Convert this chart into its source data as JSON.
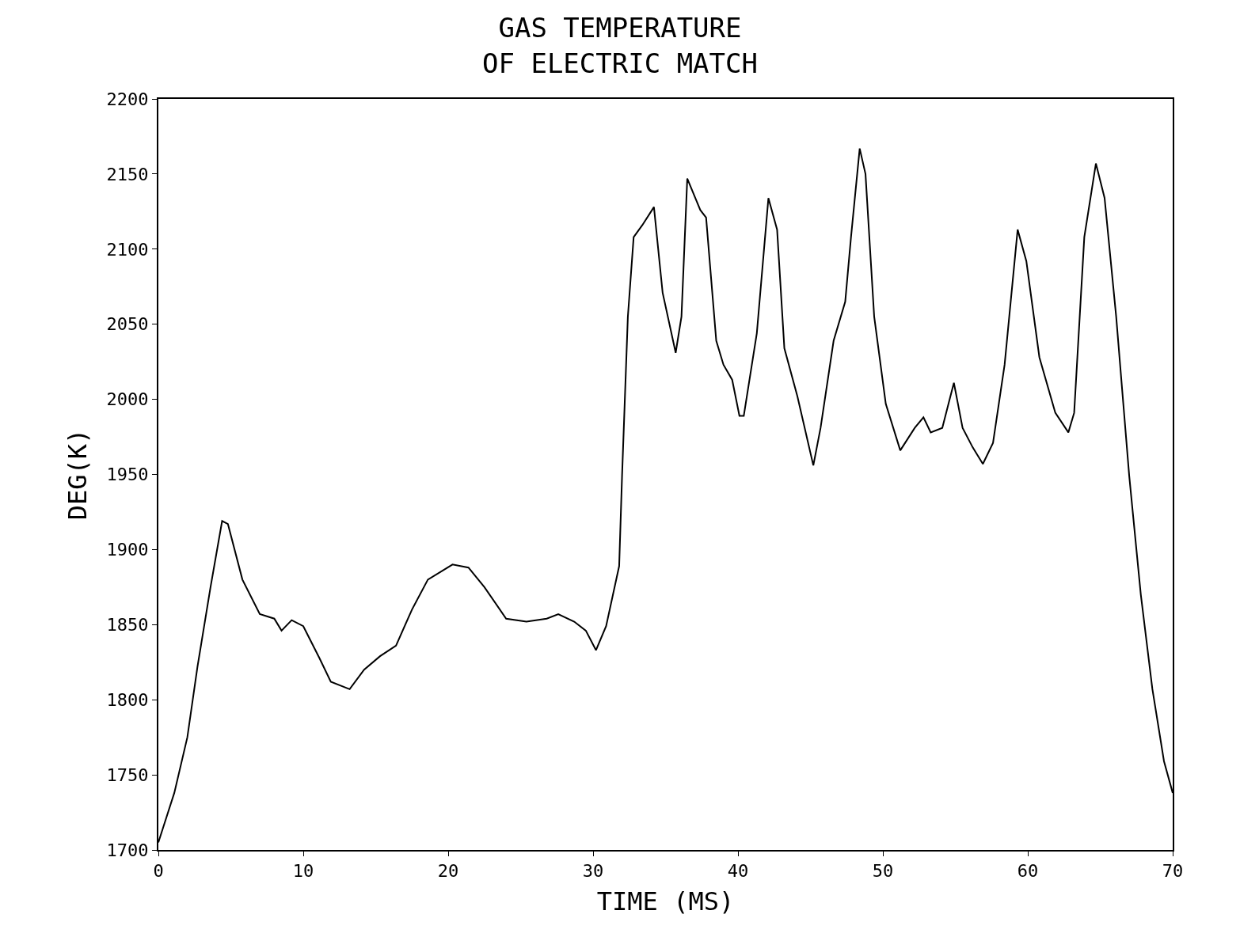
{
  "chart_data": {
    "type": "line",
    "title": "GAS TEMPERATURE\nOF ELECTRIC MATCH",
    "xlabel": "TIME (MS)",
    "ylabel": "DEG(K)",
    "x": [
      0,
      1.1,
      2.0,
      2.7,
      3.6,
      4.4,
      4.8,
      5.8,
      7.0,
      8.0,
      8.5,
      9.2,
      10.0,
      11.1,
      11.9,
      13.2,
      14.2,
      15.3,
      16.4,
      17.5,
      18.6,
      20.3,
      21.4,
      22.5,
      24.0,
      25.4,
      26.8,
      27.6,
      28.7,
      29.5,
      30.2,
      30.9,
      31.8,
      32.0,
      32.4,
      32.8,
      33.4,
      34.2,
      34.8,
      35.7,
      36.1,
      36.5,
      37.4,
      37.8,
      38.5,
      39.0,
      39.6,
      40.1,
      40.4,
      41.3,
      42.1,
      42.7,
      43.2,
      44.1,
      45.2,
      45.7,
      46.6,
      47.4,
      47.8,
      48.4,
      48.8,
      49.4,
      50.2,
      51.2,
      52.2,
      52.8,
      53.3,
      54.1,
      54.9,
      55.5,
      56.2,
      56.9,
      57.6,
      58.4,
      59.3,
      59.9,
      60.8,
      61.9,
      62.8,
      63.2,
      63.9,
      64.7,
      65.3,
      66.1,
      67.0,
      67.8,
      68.6,
      69.4,
      70.0
    ],
    "series": [
      {
        "color": "#000000",
        "values": [
          1705,
          1738,
          1775,
          1822,
          1875,
          1919,
          1917,
          1880,
          1857,
          1854,
          1846,
          1853,
          1849,
          1828,
          1812,
          1807,
          1820,
          1829,
          1836,
          1860,
          1880,
          1890,
          1888,
          1875,
          1854,
          1852,
          1854,
          1857,
          1852,
          1846,
          1833,
          1849,
          1889,
          1949,
          2055,
          2108,
          2116,
          2128,
          2071,
          2031,
          2055,
          2147,
          2126,
          2121,
          2039,
          2023,
          2013,
          1989,
          1989,
          2044,
          2134,
          2113,
          2034,
          2002,
          1956,
          1981,
          2039,
          2065,
          2108,
          2167,
          2150,
          2055,
          1997,
          1966,
          1981,
          1988,
          1978,
          1981,
          2011,
          1981,
          1968,
          1957,
          1971,
          2023,
          2113,
          2092,
          2028,
          1991,
          1978,
          1991,
          2108,
          2157,
          2134,
          2055,
          1949,
          1870,
          1807,
          1759,
          1738
        ]
      }
    ],
    "xlim": [
      0,
      70
    ],
    "xticks": [
      0,
      10,
      20,
      30,
      40,
      50,
      60,
      70
    ],
    "ylim": [
      1700,
      2200
    ],
    "yticks": [
      1700,
      1750,
      1800,
      1850,
      1900,
      1950,
      2000,
      2050,
      2100,
      2150,
      2200
    ],
    "line_style": "solid",
    "marker": "none"
  }
}
